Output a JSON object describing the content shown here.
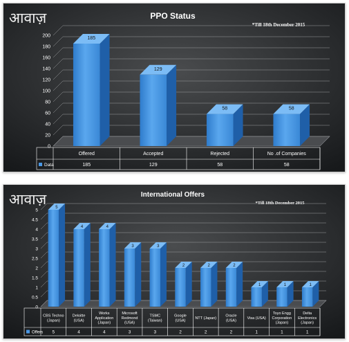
{
  "chart_data": [
    {
      "type": "bar",
      "logo": "आवाज़",
      "title": "PPO Status",
      "note": "*Till 18th December 2015",
      "categories": [
        "Offered",
        "Accepted",
        "Rejected",
        "No .of Companies"
      ],
      "series": [
        {
          "name": "Data",
          "values": [
            185,
            129,
            58,
            58
          ]
        }
      ],
      "yticks": [
        0,
        20,
        40,
        60,
        80,
        100,
        120,
        140,
        160,
        180,
        200
      ],
      "ylim": [
        0,
        200
      ],
      "grid": true,
      "legend": "data-table"
    },
    {
      "type": "bar",
      "logo": "आवाज़",
      "title": "International  Offers",
      "note": "*Till 18th December 2015",
      "categories": [
        [
          "CBS Techno",
          "(Japan)"
        ],
        [
          "Deloitte",
          "(USA)"
        ],
        [
          "Works",
          "Application",
          "(Japan)"
        ],
        [
          "Microsoft",
          "Redmond",
          "(USA)"
        ],
        [
          "TSMC",
          "(Taiwan)"
        ],
        [
          "Google",
          "(USA)"
        ],
        [
          "NTT (Japan)"
        ],
        [
          "Oracle",
          "(USA)"
        ],
        [
          "Visa (USA)"
        ],
        [
          "Toyo Engg",
          "Corporation",
          "(Japan)"
        ],
        [
          "Delta",
          "Electronics",
          "(Japan)"
        ]
      ],
      "series": [
        {
          "name": "Offers",
          "values": [
            5,
            4,
            4,
            3,
            3,
            2,
            2,
            2,
            1,
            1,
            1
          ]
        }
      ],
      "yticks": [
        0,
        0.5,
        1,
        1.5,
        2,
        2.5,
        3,
        3.5,
        4,
        4.5,
        5
      ],
      "ylim": [
        0,
        5
      ],
      "grid": true,
      "legend": "data-table"
    }
  ]
}
